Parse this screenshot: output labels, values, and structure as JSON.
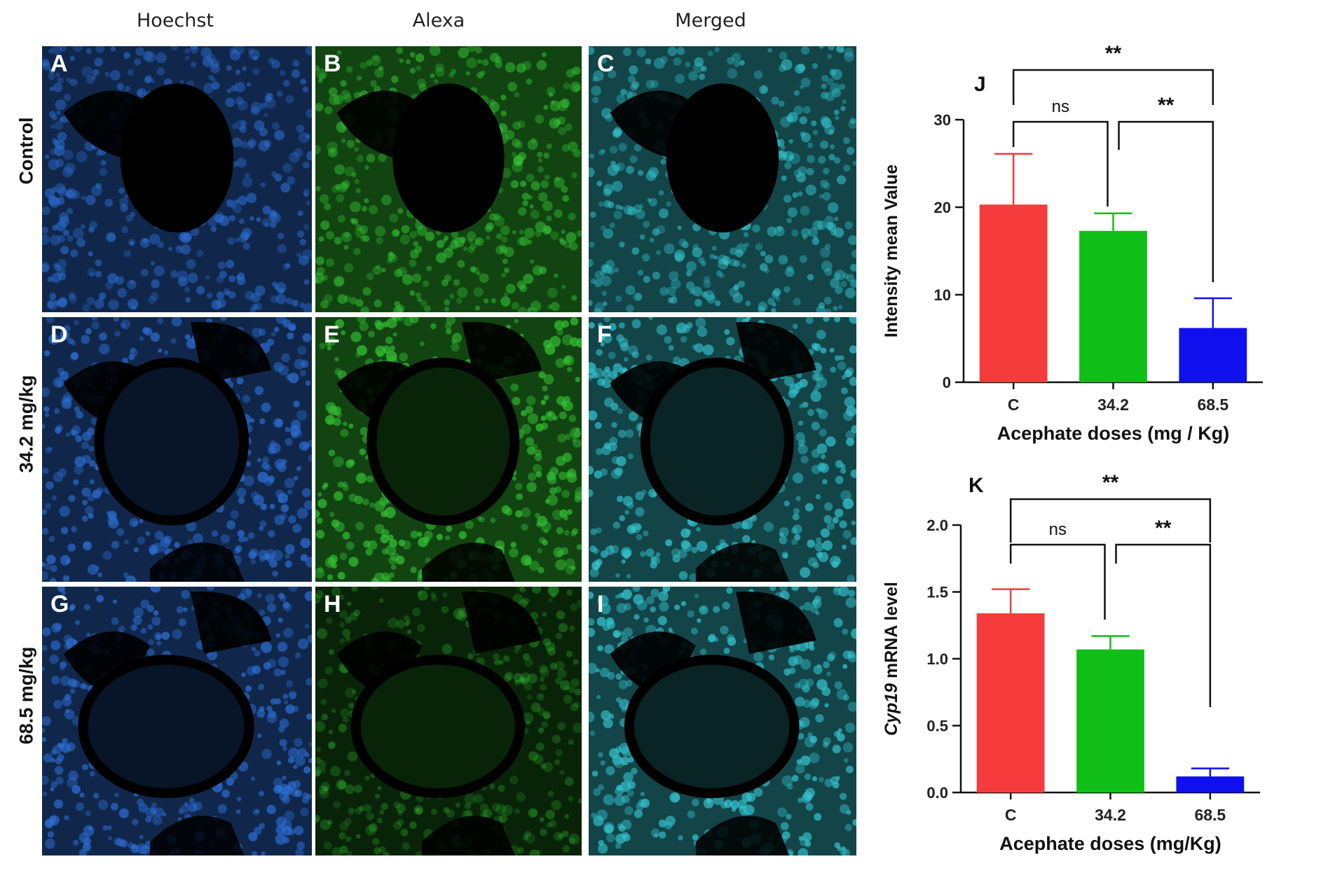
{
  "column_headers": [
    "Hoechst",
    "Alexa",
    "Merged"
  ],
  "row_labels": [
    "Control",
    "34.2 mg/kg",
    "68.5 mg/kg"
  ],
  "panels": [
    {
      "letter": "A",
      "stain": "hoechst",
      "group": 0
    },
    {
      "letter": "B",
      "stain": "alexa",
      "group": 0
    },
    {
      "letter": "C",
      "stain": "merged",
      "group": 0
    },
    {
      "letter": "D",
      "stain": "hoechst",
      "group": 1
    },
    {
      "letter": "E",
      "stain": "alexa",
      "group": 1
    },
    {
      "letter": "F",
      "stain": "merged",
      "group": 1
    },
    {
      "letter": "G",
      "stain": "hoechst",
      "group": 2
    },
    {
      "letter": "H",
      "stain": "alexa",
      "group": 2
    },
    {
      "letter": "I",
      "stain": "merged",
      "group": 2
    }
  ],
  "colors": {
    "hoechst": "#2e6fd6",
    "alexa": "#34c234",
    "merged": "#35c4cf",
    "bar_c": "#f53b3b",
    "bar_342": "#0fbf17",
    "bar_685": "#1010ee"
  },
  "chart_data": [
    {
      "panel_letter": "J",
      "type": "bar",
      "categories": [
        "C",
        "34.2",
        "68.5"
      ],
      "values": [
        20.3,
        17.3,
        6.2
      ],
      "errors": [
        5.8,
        2.0,
        3.4
      ],
      "xlabel": "Acephate doses (mg / Kg)",
      "ylabel": "Intensity mean Value",
      "ylim": [
        0,
        30
      ],
      "yticks": [
        "0",
        "10",
        "20",
        "30"
      ],
      "significance": [
        {
          "from": 0,
          "to": 1,
          "label": "ns"
        },
        {
          "from": 1,
          "to": 2,
          "label": "**"
        },
        {
          "from": 0,
          "to": 2,
          "label": "**"
        }
      ]
    },
    {
      "panel_letter": "K",
      "type": "bar",
      "categories": [
        "C",
        "34.2",
        "68.5"
      ],
      "values": [
        1.34,
        1.07,
        0.12
      ],
      "errors": [
        0.18,
        0.1,
        0.06
      ],
      "xlabel": "Acephate doses (mg/Kg)",
      "ylabel_italic": "Cyp19",
      "ylabel": " mRNA level",
      "ylim": [
        0,
        2.0
      ],
      "yticks": [
        "0.0",
        "0.5",
        "1.0",
        "1.5",
        "2.0"
      ],
      "significance": [
        {
          "from": 0,
          "to": 1,
          "label": "ns"
        },
        {
          "from": 1,
          "to": 2,
          "label": "**"
        },
        {
          "from": 0,
          "to": 2,
          "label": "**"
        }
      ]
    }
  ]
}
